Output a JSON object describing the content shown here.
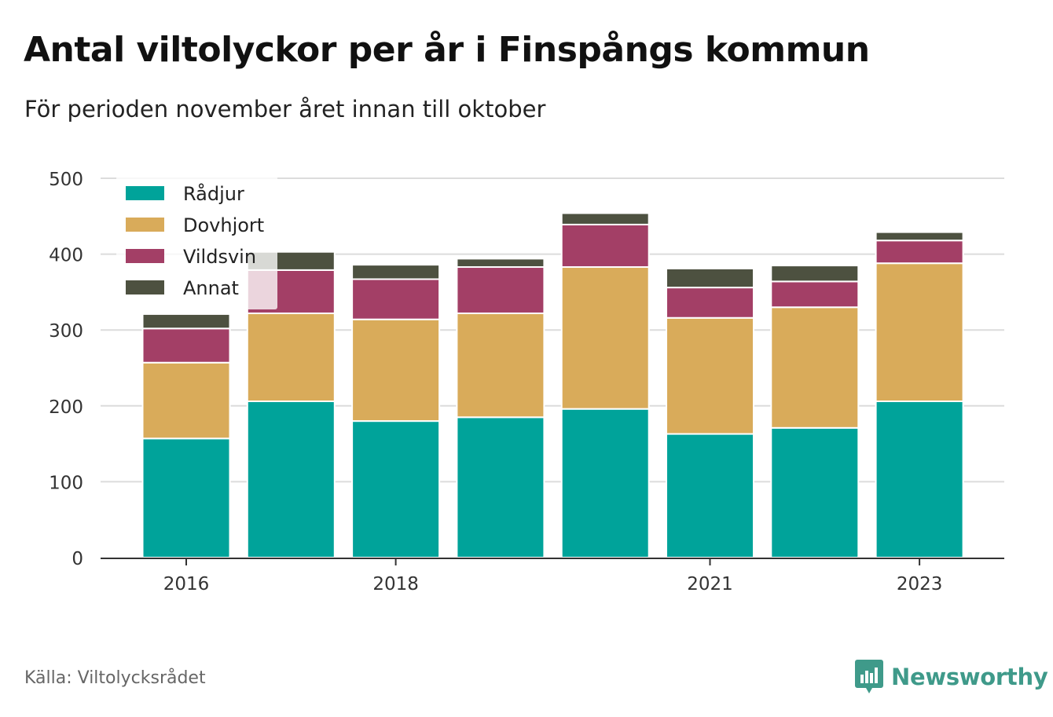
{
  "title": "Antal viltolyckor per år i Finspångs kommun",
  "subtitle": "För perioden november året innan till oktober",
  "source": "Källa: Viltolycksrådet",
  "brand": {
    "name": "Newsworthy"
  },
  "chart_data": {
    "type": "bar",
    "stacked": true,
    "categories": [
      "2016",
      "2017",
      "2018",
      "2019",
      "2020",
      "2021",
      "2022",
      "2023"
    ],
    "x_tick_labels": [
      "2016",
      "",
      "2018",
      "",
      "",
      "2021",
      "",
      "2023"
    ],
    "series": [
      {
        "name": "Rådjur",
        "color": "#00a39a",
        "values": [
          157,
          206,
          180,
          185,
          196,
          163,
          171,
          206
        ]
      },
      {
        "name": "Dovhjort",
        "color": "#d9ab5a",
        "values": [
          100,
          116,
          134,
          137,
          187,
          153,
          159,
          182
        ]
      },
      {
        "name": "Vildsvin",
        "color": "#a33f66",
        "values": [
          45,
          57,
          53,
          61,
          56,
          40,
          34,
          30
        ]
      },
      {
        "name": "Annat",
        "color": "#4d5140",
        "values": [
          19,
          24,
          19,
          11,
          15,
          25,
          21,
          11
        ]
      }
    ],
    "ylim": [
      0,
      500
    ],
    "yticks": [
      0,
      100,
      200,
      300,
      400,
      500
    ],
    "xlabel": "",
    "ylabel": "",
    "grid": "horizontal",
    "legend_position": "top-left"
  }
}
